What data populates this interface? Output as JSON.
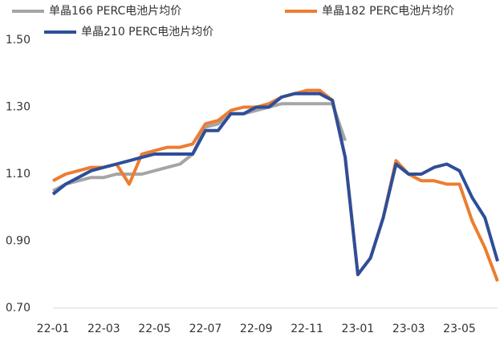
{
  "chart_data": {
    "type": "line",
    "categories": [
      "22-01",
      null,
      null,
      null,
      "22-03",
      null,
      null,
      null,
      "22-05",
      null,
      null,
      null,
      "22-07",
      null,
      null,
      null,
      "22-09",
      null,
      null,
      null,
      "22-11",
      null,
      null,
      null,
      "23-01",
      null,
      null,
      null,
      "23-03",
      null,
      null,
      null,
      "23-05",
      null,
      null,
      null
    ],
    "series": [
      {
        "name": "单晶166 PERC电池片均价",
        "color": "#a5a5a5",
        "values": [
          1.05,
          1.07,
          1.08,
          1.09,
          1.09,
          1.1,
          1.1,
          1.1,
          1.11,
          1.12,
          1.13,
          1.16,
          1.24,
          1.25,
          1.28,
          1.28,
          1.29,
          1.3,
          1.31,
          1.31,
          1.31,
          1.31,
          1.31,
          1.2,
          null,
          null,
          null,
          null,
          null,
          null,
          null,
          null,
          null,
          null,
          null,
          null
        ]
      },
      {
        "name": "单晶182 PERC电池片均价",
        "color": "#ed7d31",
        "values": [
          1.08,
          1.1,
          1.11,
          1.12,
          1.12,
          1.13,
          1.07,
          1.16,
          1.17,
          1.18,
          1.18,
          1.19,
          1.25,
          1.26,
          1.29,
          1.3,
          1.3,
          1.31,
          1.33,
          1.34,
          1.35,
          1.35,
          1.32,
          1.15,
          0.8,
          0.85,
          0.97,
          1.14,
          1.1,
          1.08,
          1.08,
          1.07,
          1.07,
          0.96,
          0.88,
          0.78
        ]
      },
      {
        "name": "单晶210 PERC电池片均价",
        "color": "#2e4e9a",
        "values": [
          1.04,
          1.07,
          1.09,
          1.11,
          1.12,
          1.13,
          1.14,
          1.15,
          1.16,
          1.16,
          1.16,
          1.16,
          1.23,
          1.23,
          1.28,
          1.28,
          1.3,
          1.3,
          1.33,
          1.34,
          1.34,
          1.34,
          1.32,
          1.15,
          0.8,
          0.85,
          0.97,
          1.13,
          1.1,
          1.1,
          1.12,
          1.13,
          1.11,
          1.03,
          0.97,
          0.84
        ]
      }
    ],
    "ylim": [
      0.7,
      1.5
    ],
    "yticks": [
      {
        "value": 0.7,
        "label": "0.70"
      },
      {
        "value": 0.9,
        "label": "0.90"
      },
      {
        "value": 1.1,
        "label": "1.10"
      },
      {
        "value": 1.3,
        "label": "1.30"
      },
      {
        "value": 1.5,
        "label": "1.50"
      }
    ],
    "grid": false
  }
}
